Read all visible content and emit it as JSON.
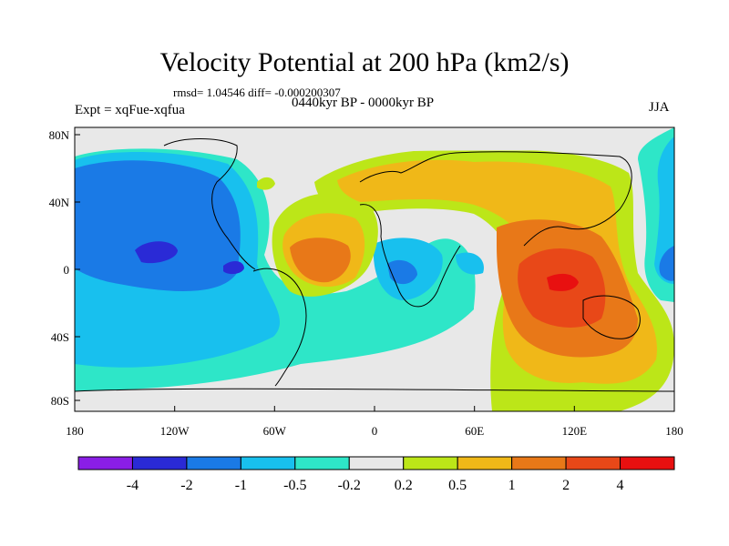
{
  "title": "Velocity Potential at 200 hPa (km2/s)",
  "stats": "rmsd= 1.04546 diff= -0.000200307",
  "period": "0440kyr BP - 0000kyr BP",
  "expt": "Expt = xqFue-xqfua",
  "season": "JJA",
  "lat_ticks": [
    "80N",
    "40N",
    "0",
    "40S",
    "80S"
  ],
  "lon_ticks": [
    "180",
    "120W",
    "60W",
    "0",
    "60E",
    "120E",
    "180"
  ],
  "colorbar": {
    "colors": [
      "#8a1ee6",
      "#2a2ad6",
      "#1a7ae6",
      "#18c0ee",
      "#2ee6c8",
      "#e8e8e8",
      "#bce618",
      "#f0b818",
      "#e87818",
      "#e84818",
      "#e81010"
    ],
    "labels": [
      "-4",
      "-2",
      "-1",
      "-0.5",
      "-0.2",
      "0.2",
      "0.5",
      "1",
      "2",
      "4"
    ]
  }
}
